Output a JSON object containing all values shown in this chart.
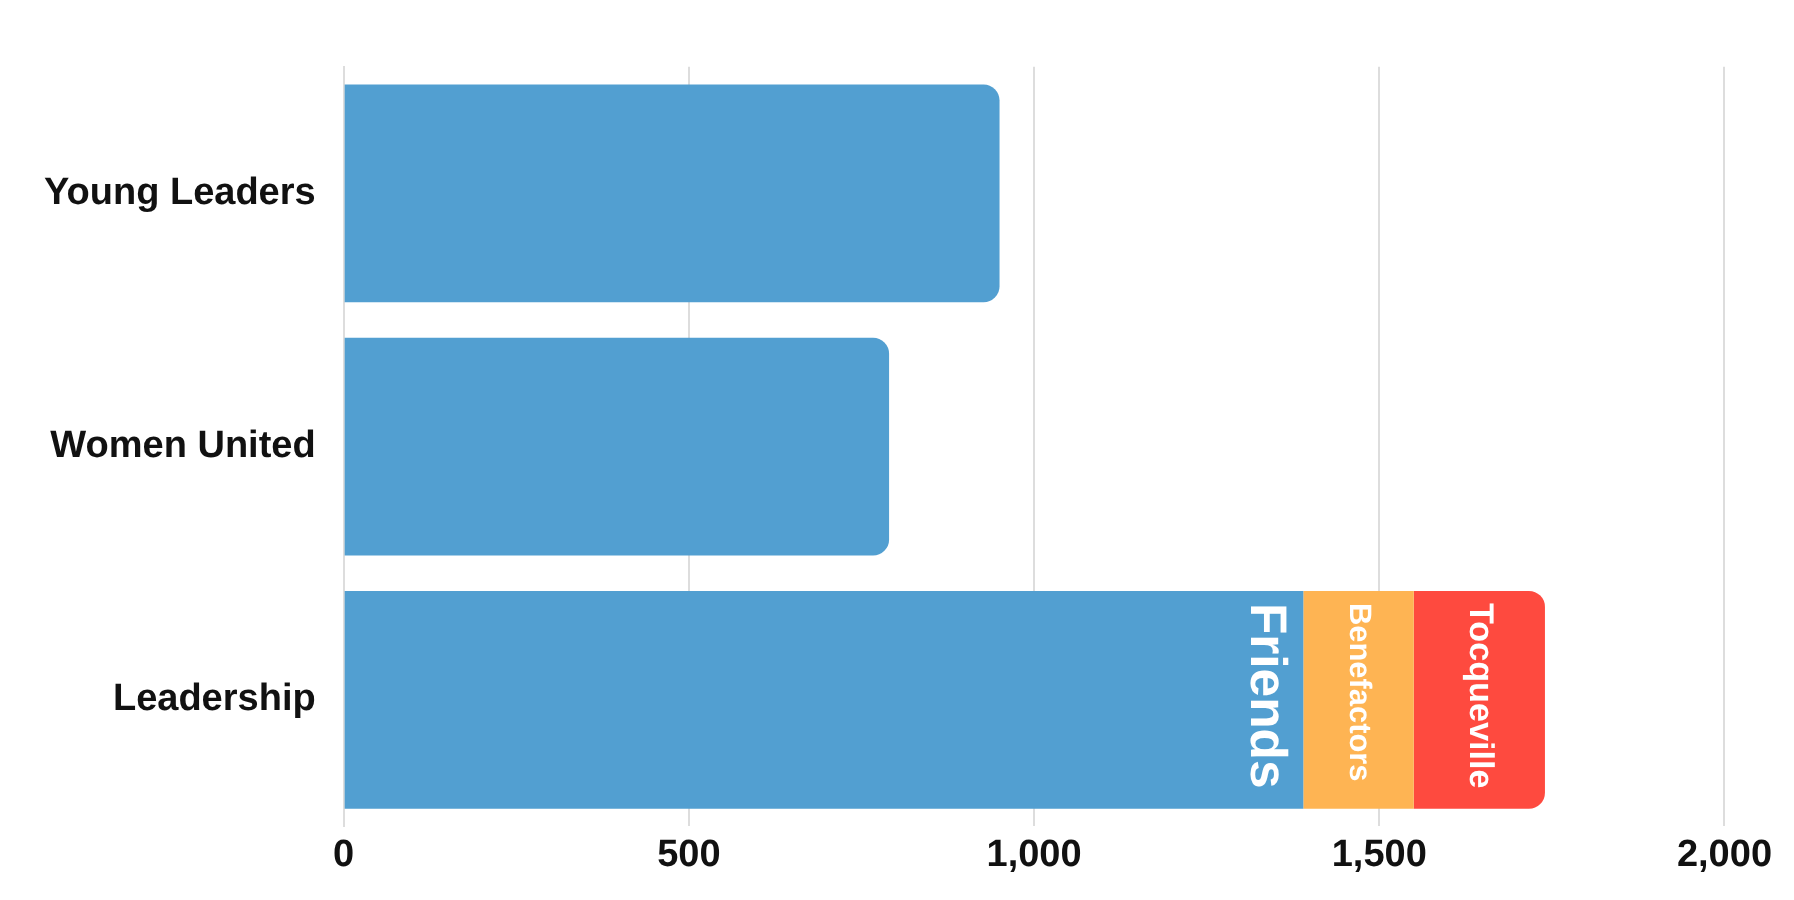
{
  "chart_data": {
    "type": "bar",
    "orientation": "horizontal",
    "stacked": true,
    "categories": [
      "Young Leaders",
      "Women United",
      "Leadership"
    ],
    "series": [
      {
        "name": "Friends",
        "color": "#529fd1",
        "values": [
          950,
          790,
          1390
        ]
      },
      {
        "name": "Benefactors",
        "color": "#feb453",
        "values": [
          null,
          null,
          160
        ]
      },
      {
        "name": "Tocqueville",
        "color": "#fe4a3f",
        "values": [
          null,
          null,
          190
        ]
      }
    ],
    "xlim": [
      0,
      2000
    ],
    "xticks": [
      0,
      500,
      {
        "value": 1000,
        "label": "1,000"
      },
      {
        "value": 1500,
        "label": "1,500"
      },
      {
        "value": 2000,
        "label": "2,000"
      }
    ],
    "grid": "x",
    "legend": false
  }
}
